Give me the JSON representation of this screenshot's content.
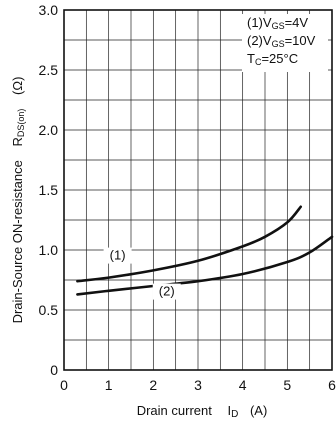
{
  "chart_data": {
    "type": "line",
    "x_ticks": [
      "0",
      "1",
      "2",
      "3",
      "4",
      "5",
      "6"
    ],
    "y_ticks": [
      "0",
      "0.5",
      "1.0",
      "1.5",
      "2.0",
      "2.5",
      "3.0"
    ],
    "xlim": [
      0,
      6
    ],
    "ylim": [
      0,
      3.0
    ],
    "grid": true,
    "xlabel": {
      "main": "Drain current",
      "symbol": "I",
      "symbol_sub": "D",
      "unit": "(A)"
    },
    "ylabel": {
      "main": "Drain-Source ON-resistance",
      "symbol": "R",
      "symbol_sub": "DS(on)",
      "unit": "(Ω)"
    },
    "legend": {
      "placement": "top-right",
      "lines": [
        {
          "prefix": "(1)V",
          "sub": "GS",
          "suffix": "=4V"
        },
        {
          "prefix": "(2)V",
          "sub": "GS",
          "suffix": "=10V"
        },
        {
          "prefix": "T",
          "sub": "C",
          "suffix": "=25°C"
        }
      ]
    },
    "series": [
      {
        "label": "(1)",
        "x": [
          0.3,
          1.0,
          2.0,
          3.0,
          4.0,
          4.5,
          5.0,
          5.3
        ],
        "y": [
          0.74,
          0.77,
          0.83,
          0.91,
          1.03,
          1.11,
          1.23,
          1.36
        ]
      },
      {
        "label": "(2)",
        "x": [
          0.3,
          1.0,
          2.0,
          3.0,
          4.0,
          5.0,
          5.5,
          6.0
        ],
        "y": [
          0.63,
          0.66,
          0.7,
          0.74,
          0.8,
          0.9,
          0.98,
          1.11
        ]
      }
    ]
  }
}
